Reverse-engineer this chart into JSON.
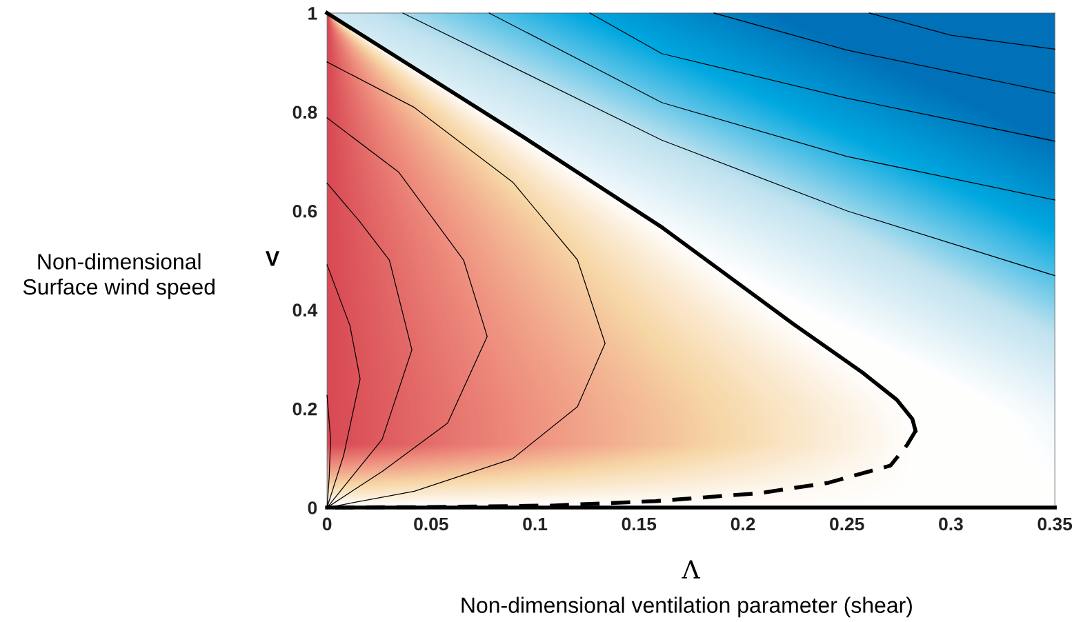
{
  "chart_data": {
    "type": "line",
    "xlabel": "Λ",
    "ylabel": "V",
    "annotations": [
      "Non-dimensional\nSurface wind speed",
      "Non-dimensional ventilation parameter (shear)"
    ],
    "xlim": [
      0,
      0.35
    ],
    "ylim": [
      0,
      1
    ],
    "xticks": [
      0,
      0.05,
      0.1,
      0.15,
      0.2,
      0.25,
      0.3,
      0.35
    ],
    "yticks": [
      0,
      0.2,
      0.4,
      0.6,
      0.8,
      1
    ],
    "grid": false,
    "series": [
      {
        "color": "#000000",
        "x": [
          0,
          0.0949,
          0.1613,
          0.2243,
          0.2575,
          0.274,
          0.2815,
          0.283
        ],
        "values": [
          1,
          0.748,
          0.566,
          0.371,
          0.273,
          0.218,
          0.179,
          0.155
        ]
      },
      {
        "color": "#000000",
        "line_style": "dashed",
        "x": [
          0.283,
          0.279,
          0.271,
          0.241,
          0.2077,
          0.158,
          0.108,
          0.05,
          0
        ],
        "values": [
          0.155,
          0.127,
          0.085,
          0.05,
          0.029,
          0.013,
          0.004,
          0.001,
          0
        ]
      },
      {
        "color": "#000000",
        "x": [
          0,
          0.35
        ],
        "values": [
          0,
          0
        ]
      },
      {
        "color": "#000000",
        "x": [
          0,
          0.042,
          0.0893,
          0.1204,
          0.1337,
          0.1204,
          0.0893,
          0.042,
          0
        ],
        "values": [
          0,
          0.033,
          0.099,
          0.204,
          0.332,
          0.501,
          0.658,
          0.809,
          0.901
        ]
      },
      {
        "color": "#000000",
        "x": [
          0,
          0.0265,
          0.058,
          0.077,
          0.0657,
          0.0345,
          0
        ],
        "values": [
          0,
          0.073,
          0.171,
          0.346,
          0.5,
          0.678,
          0.788
        ]
      },
      {
        "color": "#000000",
        "x": [
          0,
          0.0265,
          0.0408,
          0.03,
          0.0156,
          0
        ],
        "values": [
          0,
          0.138,
          0.319,
          0.5,
          0.579,
          0.656
        ]
      },
      {
        "color": "#000000",
        "x": [
          0,
          0.008,
          0.0159,
          0.011,
          0
        ],
        "values": [
          0,
          0.106,
          0.26,
          0.368,
          0.491
        ]
      },
      {
        "color": "#000000",
        "x": [
          0,
          0.001,
          0.0017,
          0
        ],
        "values": [
          0,
          0.06,
          0.138,
          0.227
        ]
      },
      {
        "color": "#000000",
        "x": [
          0.0365,
          0.161,
          0.25,
          0.35
        ],
        "values": [
          1,
          0.743,
          0.6,
          0.469
        ]
      },
      {
        "color": "#000000",
        "x": [
          0.078,
          0.161,
          0.25,
          0.35
        ],
        "values": [
          1,
          0.819,
          0.71,
          0.622
        ]
      },
      {
        "color": "#000000",
        "x": [
          0.1264,
          0.161,
          0.25,
          0.35
        ],
        "values": [
          1,
          0.918,
          0.828,
          0.741
        ]
      },
      {
        "color": "#000000",
        "x": [
          0.1861,
          0.25,
          0.35
        ],
        "values": [
          1,
          0.925,
          0.838
        ]
      },
      {
        "color": "#000000",
        "x": [
          0.2608,
          0.3,
          0.35
        ],
        "values": [
          1,
          0.955,
          0.927
        ]
      }
    ]
  }
}
